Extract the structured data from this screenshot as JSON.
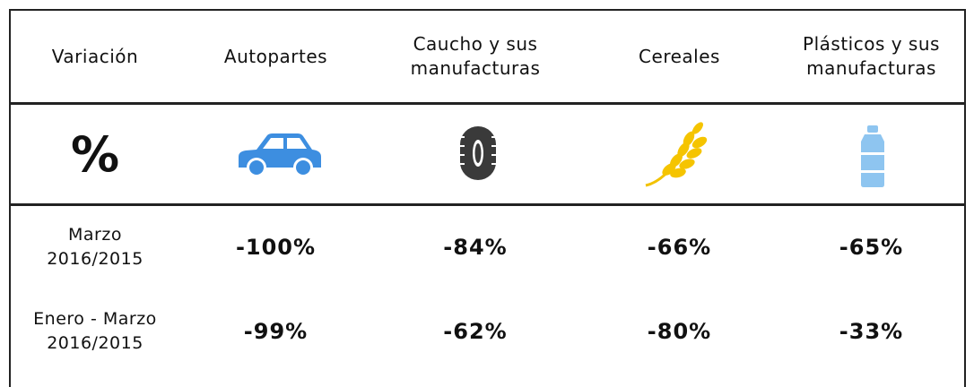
{
  "table": {
    "header": [
      "Variación",
      [
        "Autopartes"
      ],
      [
        "Caucho y sus",
        "manufacturas"
      ],
      [
        "Cereales"
      ],
      [
        "Plásticos y sus",
        "manufacturas"
      ]
    ],
    "unit_symbol": "%",
    "rows": [
      {
        "label": [
          "Marzo",
          "2016/2015"
        ],
        "values": [
          "-100%",
          "-84%",
          "-66%",
          "-65%"
        ]
      },
      {
        "label": [
          "Enero - Marzo",
          "2016/2015"
        ],
        "values": [
          "-99%",
          "-62%",
          "-80%",
          "-33%"
        ]
      }
    ]
  }
}
